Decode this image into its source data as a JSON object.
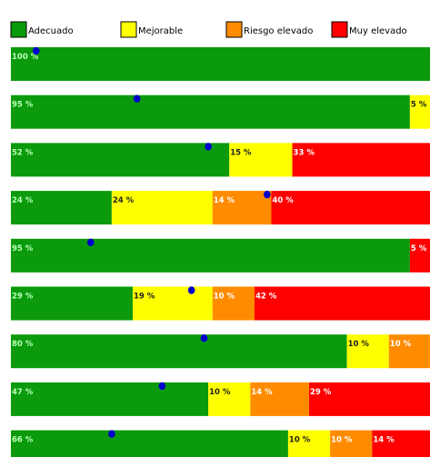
{
  "chart_data": {
    "type": "bar",
    "stacked": true,
    "orientation": "horizontal",
    "legend": {
      "placement": "top",
      "items": [
        {
          "name": "Adecuado",
          "color": "#0b9a0b"
        },
        {
          "name": "Mejorable",
          "color": "#ffff00"
        },
        {
          "name": "Riesgo elevado",
          "color": "#ff8c00"
        },
        {
          "name": "Muy elevado",
          "color": "#ff0000"
        }
      ]
    },
    "series": [
      {
        "name": "Adecuado",
        "values": [
          100,
          95,
          52,
          24,
          95,
          29,
          80,
          47,
          66
        ],
        "labels": [
          "100 %",
          "95 %",
          "52 %",
          "24 %",
          "95 %",
          "29 %",
          "80 %",
          "47 %",
          "66 %"
        ]
      },
      {
        "name": "Mejorable",
        "values": [
          0,
          5,
          15,
          24,
          0,
          19,
          10,
          10,
          10
        ],
        "labels": [
          "",
          "5 %",
          "15 %",
          "24 %",
          "",
          "19 %",
          "10 %",
          "10 %",
          "10 %"
        ]
      },
      {
        "name": "Riesgo elevado",
        "values": [
          0,
          0,
          0,
          14,
          0,
          10,
          10,
          14,
          10
        ],
        "labels": [
          "",
          "",
          "",
          "14 %",
          "",
          "10 %",
          "10 %",
          "14 %",
          "10 %"
        ]
      },
      {
        "name": "Muy elevado",
        "values": [
          0,
          0,
          33,
          40,
          5,
          42,
          0,
          29,
          14
        ],
        "labels": [
          "",
          "",
          "33 %",
          "40 %",
          "5 %",
          "42 %",
          "",
          "29 %",
          "14 %"
        ]
      }
    ],
    "markers": {
      "color": "#0000cc",
      "values": [
        6,
        30,
        47,
        61,
        19,
        43,
        46,
        36,
        24
      ]
    },
    "xlim": [
      0,
      100
    ],
    "grid": false
  }
}
